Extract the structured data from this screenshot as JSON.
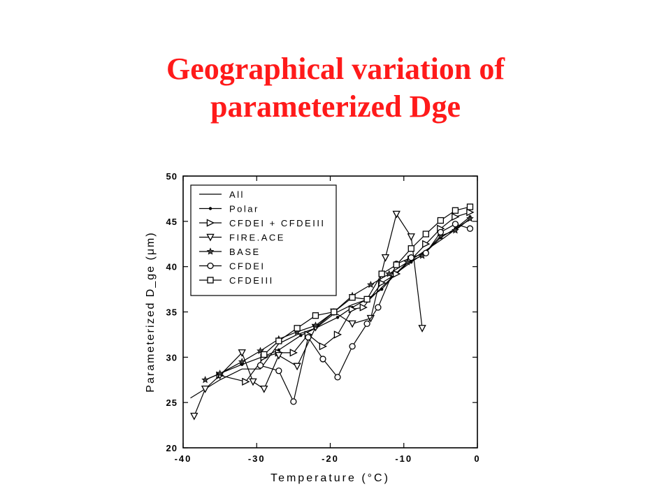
{
  "slide": {
    "title_line1": "Geographical variation of",
    "title_line2": "parameterized Dge"
  },
  "chart_data": {
    "type": "line",
    "xlabel": "Temperature (°C)",
    "ylabel": "Parameterized D_ge (μm)",
    "xlim": [
      -40,
      0
    ],
    "ylim": [
      20,
      50
    ],
    "xticks": [
      -40,
      -30,
      -20,
      -10,
      0
    ],
    "yticks": [
      20,
      25,
      30,
      35,
      40,
      45,
      50
    ],
    "grid": false,
    "legend_position": "top-left",
    "series": [
      {
        "name": "All",
        "marker": "none",
        "x": [
          -39,
          -35,
          -32,
          -29.5,
          -27,
          -24.5,
          -22,
          -19.5,
          -17,
          -14.5,
          -12,
          -9.5,
          -7,
          -4.5,
          -2,
          -1
        ],
        "y": [
          25.5,
          27.5,
          28.7,
          28.7,
          31.5,
          32.5,
          33.2,
          34.8,
          35.8,
          36.5,
          38.5,
          40.5,
          41.8,
          43.2,
          44.7,
          45.2
        ]
      },
      {
        "name": "Polar",
        "marker": "dot",
        "x": [
          -37,
          -35,
          -32,
          -29,
          -27,
          -24,
          -22,
          -19,
          -17,
          -15,
          -13,
          -11,
          -9,
          -7,
          -5,
          -3,
          -1
        ],
        "y": [
          27.5,
          28.2,
          29.2,
          30.1,
          30.8,
          32.4,
          33.2,
          34.4,
          35.5,
          36.4,
          37.5,
          39.3,
          40.5,
          41.6,
          43.2,
          44.2,
          45.5
        ]
      },
      {
        "name": "CFDEI + CFDEIII",
        "marker": "triangle-right",
        "x": [
          -35,
          -31.5,
          -29,
          -27,
          -25,
          -23,
          -21,
          -19,
          -17,
          -15.5,
          -13,
          -11,
          -9,
          -7,
          -5,
          -3,
          -1
        ],
        "y": [
          28.0,
          27.3,
          30.0,
          30.5,
          30.5,
          32.5,
          31.2,
          32.5,
          35.3,
          35.5,
          38.2,
          39.2,
          40.8,
          42.5,
          44.2,
          45.5,
          46.0
        ]
      },
      {
        "name": "FIRE.ACE",
        "marker": "triangle-down",
        "x": [
          -38.5,
          -37,
          -35,
          -32,
          -30.5,
          -29,
          -27,
          -24.5,
          -22,
          -19.5,
          -17,
          -14.5,
          -12.5,
          -11,
          -9,
          -7.5
        ],
        "y": [
          23.5,
          26.5,
          28.0,
          30.5,
          27.3,
          26.5,
          30.2,
          29.0,
          33.3,
          35.0,
          33.7,
          34.3,
          41.0,
          45.8,
          43.3,
          33.2
        ]
      },
      {
        "name": "BASE",
        "marker": "star",
        "x": [
          -37,
          -35,
          -32,
          -29.5,
          -27,
          -24.5,
          -22,
          -19.5,
          -17,
          -14.5,
          -12,
          -9.5,
          -7.5,
          -5,
          -3,
          -1
        ],
        "y": [
          27.5,
          28.2,
          29.5,
          30.7,
          32.0,
          32.8,
          33.5,
          35.0,
          36.8,
          38.0,
          39.2,
          40.5,
          41.2,
          43.4,
          44.0,
          45.3
        ]
      },
      {
        "name": "CFDEI",
        "marker": "circle",
        "x": [
          -29.5,
          -27,
          -25,
          -23,
          -21,
          -19,
          -17,
          -15,
          -13.5,
          -11,
          -9,
          -7,
          -5,
          -3,
          -1
        ],
        "y": [
          29.1,
          28.5,
          25.1,
          32.2,
          29.8,
          27.8,
          31.2,
          33.7,
          35.5,
          40.3,
          41.0,
          41.5,
          43.8,
          44.7,
          44.2
        ]
      },
      {
        "name": "CFDEIII",
        "marker": "square",
        "x": [
          -29,
          -27,
          -24.5,
          -22,
          -19.5,
          -17,
          -15,
          -13,
          -11,
          -9,
          -7,
          -5,
          -3,
          -1
        ],
        "y": [
          30.3,
          31.8,
          33.2,
          34.6,
          35.0,
          36.6,
          36.4,
          39.2,
          40.2,
          42.0,
          43.6,
          45.1,
          46.2,
          46.6
        ]
      }
    ]
  }
}
